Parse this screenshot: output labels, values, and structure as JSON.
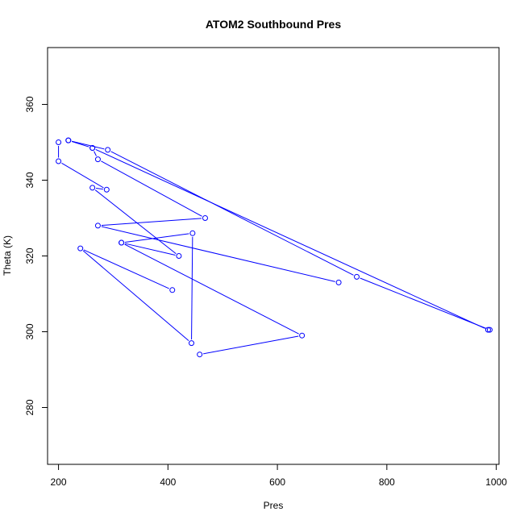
{
  "chart_data": {
    "type": "line",
    "title": "ATOM2 Southbound Pres",
    "xlabel": "Pres",
    "ylabel": "Theta (K)",
    "xlim": [
      180,
      1005
    ],
    "ylim": [
      265,
      375
    ],
    "xticks": [
      200,
      400,
      600,
      800,
      1000
    ],
    "yticks": [
      280,
      300,
      320,
      340,
      360
    ],
    "grid": false,
    "legend": "none",
    "marker": "open-circle",
    "color": "#0000ff",
    "series": [
      {
        "x": [
          200,
          200,
          288,
          262,
          420,
          315,
          445,
          443,
          240,
          408
        ],
        "y": [
          350,
          345,
          337.5,
          338,
          320,
          323.5,
          326,
          297,
          322,
          311
        ]
      },
      {
        "x": [
          218,
          290,
          745,
          988
        ],
        "y": [
          350.5,
          348,
          314.5,
          300.5
        ]
      },
      {
        "x": [
          262,
          272,
          468,
          272,
          712
        ],
        "y": [
          348.5,
          345.5,
          330,
          328,
          313
        ]
      },
      {
        "x": [
          218,
          262,
          985
        ],
        "y": [
          350.5,
          348.5,
          300.5
        ]
      },
      {
        "x": [
          458,
          645,
          315
        ],
        "y": [
          294,
          299,
          323.5
        ]
      }
    ]
  }
}
